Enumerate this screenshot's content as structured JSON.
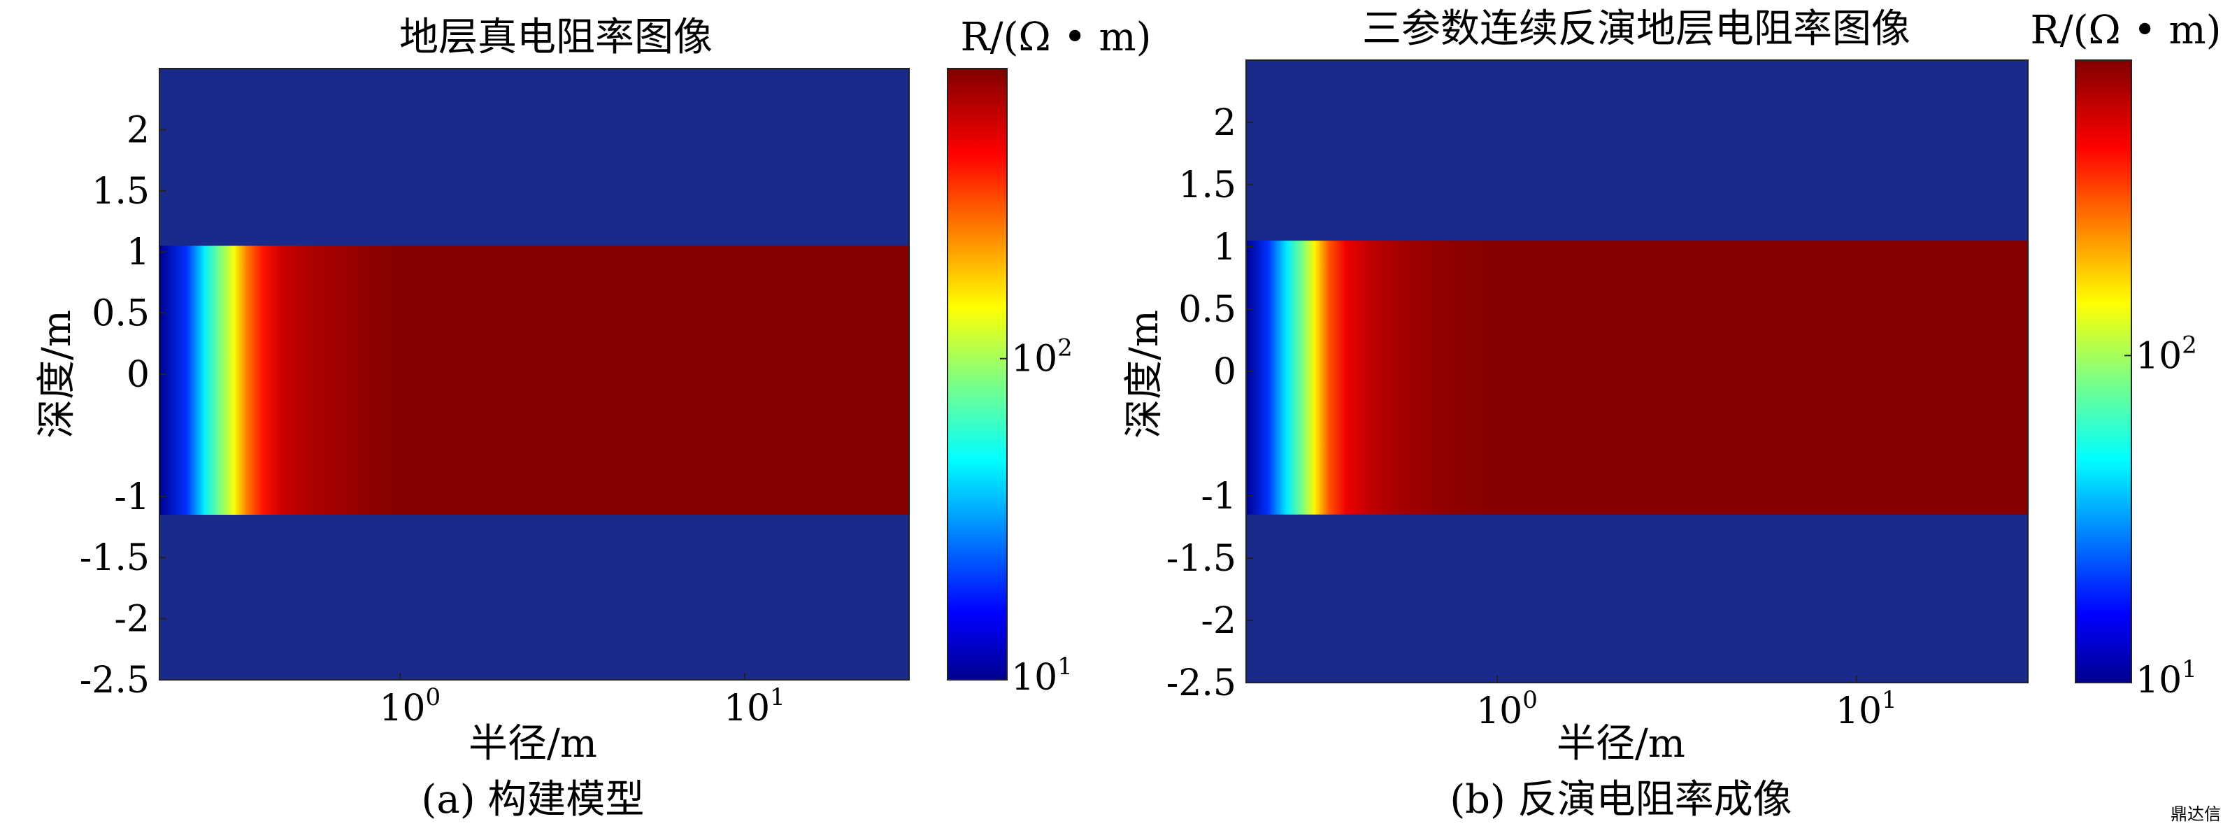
{
  "chart_data": [
    {
      "type": "heatmap",
      "title": "地层真电阻率图像",
      "xlabel": "半径/m",
      "ylabel": "深度/m",
      "caption": "(a) 构建模型",
      "x_scale": "log",
      "xlim": [
        0.2,
        30
      ],
      "x_ticks": [
        {
          "value": 1,
          "label": "10",
          "sup": "0"
        },
        {
          "value": 10,
          "label": "10",
          "sup": "1"
        }
      ],
      "ylim": [
        -2.5,
        2.5
      ],
      "y_ticks": [
        2,
        1.5,
        1,
        0.5,
        0,
        -1,
        -1.5,
        -2,
        -2.5
      ],
      "colorbar": {
        "unit": "R/(Ω • m)",
        "scale": "log",
        "range": [
          10,
          800
        ],
        "ticks": [
          {
            "value": 100,
            "label": "10",
            "sup": "2"
          },
          {
            "value": 10,
            "label": "10",
            "sup": "1"
          }
        ],
        "colormap": "jet"
      },
      "background_resistivity": 10,
      "layer": {
        "depth_top": 1.05,
        "depth_bottom": -1.15
      },
      "radial_profile": {
        "radius": [
          0.2,
          0.24,
          0.27,
          0.3,
          0.33,
          0.36,
          0.4,
          0.45,
          0.55,
          0.7,
          0.85,
          1.0,
          30
        ],
        "resistivity": [
          10,
          20,
          45,
          85,
          140,
          260,
          400,
          550,
          640,
          700,
          760,
          780,
          780
        ]
      }
    },
    {
      "type": "heatmap",
      "title": "三参数连续反演地层电阻率图像",
      "xlabel": "半径/m",
      "ylabel": "深度/m",
      "caption": "(b) 反演电阻率成像",
      "x_scale": "log",
      "xlim": [
        0.2,
        30
      ],
      "x_ticks": [
        {
          "value": 1,
          "label": "10",
          "sup": "0"
        },
        {
          "value": 10,
          "label": "10",
          "sup": "1"
        }
      ],
      "ylim": [
        -2.5,
        2.5
      ],
      "y_ticks": [
        2,
        1.5,
        1,
        0.5,
        0,
        -1,
        -1.5,
        -2,
        -2.5
      ],
      "colorbar": {
        "unit": "R/(Ω • m)",
        "scale": "log",
        "range": [
          10,
          800
        ],
        "ticks": [
          {
            "value": 100,
            "label": "10",
            "sup": "2"
          },
          {
            "value": 10,
            "label": "10",
            "sup": "1"
          }
        ],
        "colormap": "jet"
      },
      "background_resistivity": 10,
      "layer": {
        "depth_top": 1.05,
        "depth_bottom": -1.15
      },
      "radial_profile": {
        "radius": [
          0.2,
          0.23,
          0.26,
          0.29,
          0.31,
          0.34,
          0.38,
          0.45,
          0.55,
          0.7,
          1.0,
          30
        ],
        "resistivity": [
          10,
          20,
          45,
          90,
          150,
          300,
          470,
          600,
          680,
          740,
          780,
          780
        ]
      }
    }
  ],
  "watermark": "鼎达信"
}
